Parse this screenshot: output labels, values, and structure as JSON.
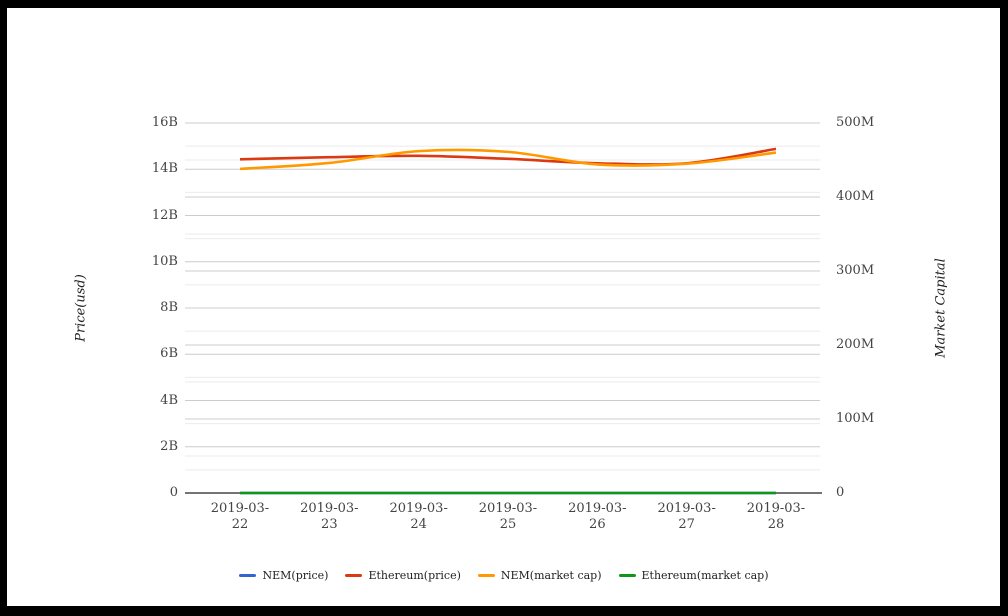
{
  "chart_data": {
    "type": "line",
    "smooth": true,
    "legend_position": "bottom",
    "grid": {
      "major_color": "#cccccc",
      "minor_color": "#ebebeb",
      "baseline_color": "#222222"
    },
    "x": [
      "2019-03-22",
      "2019-03-23",
      "2019-03-24",
      "2019-03-25",
      "2019-03-26",
      "2019-03-27",
      "2019-03-28"
    ],
    "left_axis": {
      "title": "Price(usd)",
      "range": [
        0,
        16
      ],
      "unit": "B",
      "ticks": [
        {
          "label": "0",
          "value": 0
        },
        {
          "label": "2B",
          "value": 2
        },
        {
          "label": "4B",
          "value": 4
        },
        {
          "label": "6B",
          "value": 6
        },
        {
          "label": "8B",
          "value": 8
        },
        {
          "label": "10B",
          "value": 10
        },
        {
          "label": "12B",
          "value": 12
        },
        {
          "label": "14B",
          "value": 14
        },
        {
          "label": "16B",
          "value": 16
        }
      ]
    },
    "right_axis": {
      "title": "Market Capital",
      "range": [
        0,
        500
      ],
      "unit": "M",
      "ticks": [
        {
          "label": "0",
          "value": 0
        },
        {
          "label": "100M",
          "value": 100
        },
        {
          "label": "200M",
          "value": 200
        },
        {
          "label": "300M",
          "value": 300
        },
        {
          "label": "400M",
          "value": 400
        },
        {
          "label": "500M",
          "value": 500
        }
      ]
    },
    "series": [
      {
        "name": "NEM(price)",
        "color": "#3366CC",
        "axis": "left",
        "values": [
          0,
          0,
          0,
          0,
          0,
          0,
          0
        ]
      },
      {
        "name": "Ethereum(price)",
        "color": "#DC3912",
        "axis": "left",
        "values": [
          14.43,
          14.52,
          14.58,
          14.45,
          14.26,
          14.26,
          14.88
        ]
      },
      {
        "name": "NEM(market cap)",
        "color": "#FF9900",
        "axis": "right",
        "values": [
          438,
          446,
          462,
          461,
          444,
          445,
          460
        ]
      },
      {
        "name": "Ethereum(market cap)",
        "color": "#109618",
        "axis": "right",
        "values": [
          0,
          0,
          0,
          0,
          0,
          0,
          0
        ]
      }
    ]
  }
}
